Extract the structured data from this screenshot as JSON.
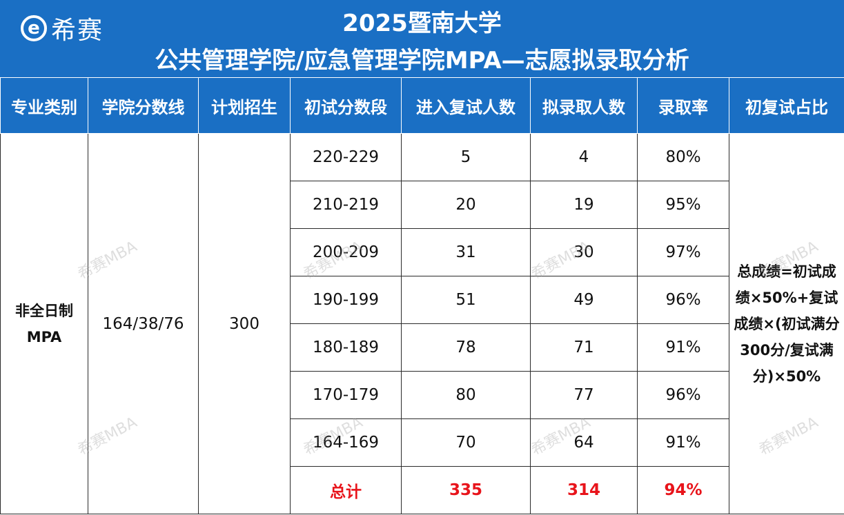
{
  "header": {
    "logo_text": "希赛",
    "logo_glyph": "e",
    "title_line1": "2025暨南大学",
    "title_line2": "公共管理学院/应急管理学院MPA—志愿拟录取分析",
    "background_color": "#1a6fc4"
  },
  "table": {
    "columns": [
      "专业类别",
      "学院分数线",
      "计划招生",
      "初试分数段",
      "进入复试人数",
      "拟录取人数",
      "录取率",
      "初复试占比"
    ],
    "category": "非全日制MPA",
    "cutoff": "164/38/76",
    "plan": "300",
    "rows": [
      {
        "range": "220-229",
        "retest": "5",
        "admit": "4",
        "rate": "80%"
      },
      {
        "range": "210-219",
        "retest": "20",
        "admit": "19",
        "rate": "95%"
      },
      {
        "range": "200-209",
        "retest": "31",
        "admit": "30",
        "rate": "97%"
      },
      {
        "range": "190-199",
        "retest": "51",
        "admit": "49",
        "rate": "96%"
      },
      {
        "range": "180-189",
        "retest": "78",
        "admit": "71",
        "rate": "91%"
      },
      {
        "range": "170-179",
        "retest": "80",
        "admit": "77",
        "rate": "96%"
      },
      {
        "range": "164-169",
        "retest": "70",
        "admit": "64",
        "rate": "91%"
      }
    ],
    "total": {
      "label": "总计",
      "retest": "335",
      "admit": "314",
      "rate": "94%"
    },
    "ratio_note": "总成绩=初试成绩×50%+复试成绩×(初试满分300分/复试满分)×50%",
    "total_color": "#e8141b"
  },
  "watermark": "希赛MBA"
}
